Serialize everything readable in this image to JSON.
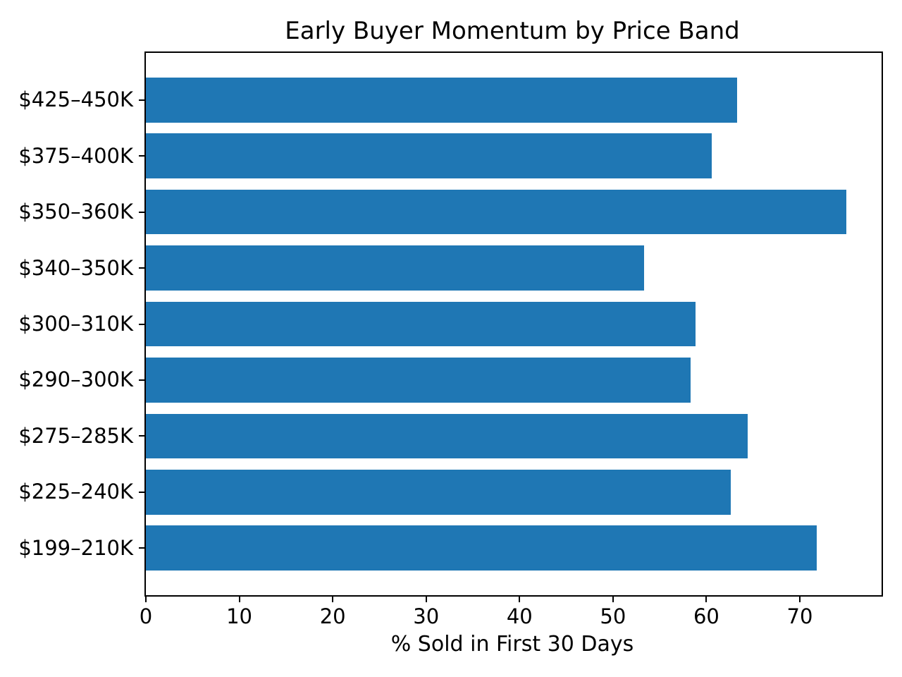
{
  "chart_data": {
    "type": "bar",
    "orientation": "horizontal",
    "title": "Early Buyer Momentum by Price Band",
    "xlabel": "% Sold in First 30 Days",
    "ylabel": "",
    "categories": [
      "$425–450K",
      "$375–400K",
      "$350–360K",
      "$340–350K",
      "$300–310K",
      "$290–300K",
      "$275–285K",
      "$225–240K",
      "$199–210K"
    ],
    "values": [
      63.3,
      60.6,
      75.0,
      53.3,
      58.8,
      58.3,
      64.4,
      62.6,
      71.8
    ],
    "xticks": [
      0,
      10,
      20,
      30,
      40,
      50,
      60,
      70
    ],
    "xlim": [
      0,
      78.75
    ],
    "grid": false,
    "legend": null,
    "bar_color": "#1f77b4",
    "axis_color": "#000000",
    "background_color": "#ffffff"
  }
}
